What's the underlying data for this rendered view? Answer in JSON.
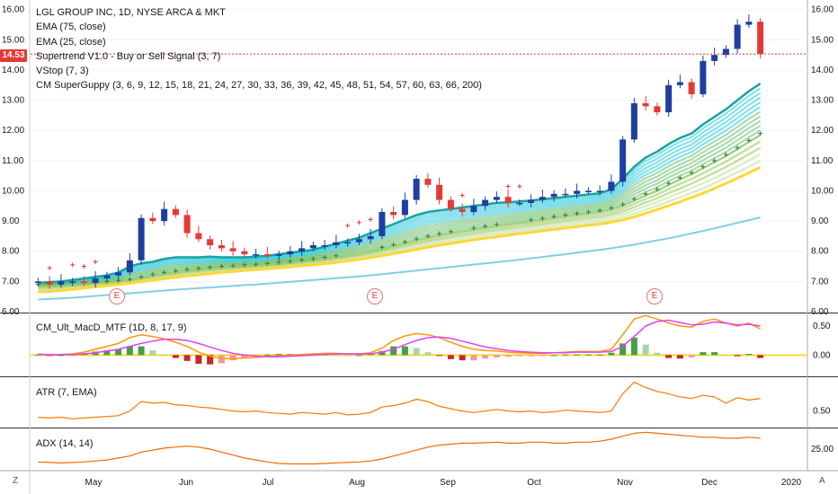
{
  "header": {
    "symbol_title": "LGL GROUP INC, 1D, NYSE ARCA & MKT",
    "indicators": [
      "EMA (75, close)",
      "EMA (25, close)",
      "Supertrend V1.0 - Buy or Sell Signal (3, 7)",
      "VStop (7, 3)",
      "CM SuperGuppy (3, 6, 9, 12, 15, 18, 21, 24, 27, 30, 33, 36, 39, 42, 45, 48, 51, 54, 57, 60, 63, 66, 200)"
    ]
  },
  "last_price": "14.53",
  "earnings_marker": "E",
  "corner_left": "Z",
  "corner_right": "A",
  "colors": {
    "up": "#26a69a",
    "up_bar": "#1e3fa0",
    "down": "#e53935",
    "ema_slow": "#7fd0e0",
    "supertrend_sell": "#e53935",
    "supertrend_buy": "#2e7d32",
    "guppy_fast": "#26c6da",
    "guppy_slow": "#66bb6a",
    "guppy_200": "#fdd835",
    "macd_line": "#e040fb",
    "signal_line": "#ff9800",
    "atr": "#f57c00",
    "adx": "#ef6c00"
  },
  "panes": {
    "macd": {
      "label": "CM_Ult_MacD_MTF (1D, 8, 17, 9)",
      "ticks": [
        "0.50",
        "0.00"
      ]
    },
    "atr": {
      "label": "ATR (7, EMA)",
      "ticks": [
        "0.50"
      ]
    },
    "adx": {
      "label": "ADX (14, 14)",
      "ticks": [
        "25.00"
      ]
    }
  },
  "chart_data": [
    {
      "type": "line",
      "title": "LGL GROUP INC, 1D, NYSE ARCA & MKT",
      "xlabel": "",
      "ylabel": "",
      "ylim": [
        6.0,
        16.2
      ],
      "x_tick_labels": [
        "May",
        "Jun",
        "Jul",
        "Aug",
        "Sep",
        "Oct",
        "Nov",
        "Dec",
        "2020"
      ],
      "y_tick_labels": [
        "6.00",
        "7.00",
        "8.00",
        "9.00",
        "10.00",
        "11.00",
        "12.00",
        "13.00",
        "14.00",
        "15.00",
        "16.00"
      ],
      "earnings_months": [
        "May",
        "Aug",
        "Nov"
      ],
      "series": [
        {
          "values": [
            7.0,
            6.9,
            7.0,
            7.0,
            6.95,
            7.1,
            7.2,
            7.3,
            7.7,
            9.1,
            9.0,
            9.4,
            9.2,
            8.6,
            8.4,
            8.2,
            8.1,
            8.0,
            7.9,
            7.9,
            7.85,
            7.9,
            8.0,
            8.1,
            8.2,
            8.2,
            8.3,
            8.3,
            8.4,
            8.5,
            9.3,
            9.2,
            9.7,
            10.4,
            10.2,
            9.7,
            9.4,
            9.3,
            9.5,
            9.7,
            9.8,
            9.6,
            9.6,
            9.7,
            9.8,
            9.9,
            9.9,
            10.0,
            10.0,
            10.0,
            10.3,
            11.7,
            12.9,
            12.8,
            12.6,
            13.5,
            13.6,
            13.2,
            14.3,
            14.5,
            14.7,
            15.5,
            15.6,
            14.53
          ]
        },
        {
          "values": [
            6.95,
            6.98,
            7.0,
            7.05,
            7.1,
            7.15,
            7.2,
            7.3,
            7.5,
            7.6,
            7.65,
            7.75,
            7.8,
            7.8,
            7.8,
            7.82,
            7.8,
            7.8,
            7.8,
            7.82,
            7.85,
            7.9,
            7.95,
            8.0,
            8.05,
            8.15,
            8.25,
            8.35,
            8.45,
            8.6,
            8.75,
            8.9,
            9.05,
            9.2,
            9.3,
            9.35,
            9.4,
            9.45,
            9.5,
            9.55,
            9.6,
            9.62,
            9.65,
            9.68,
            9.72,
            9.76,
            9.8,
            9.84,
            9.88,
            9.92,
            10.05,
            10.4,
            10.8,
            11.1,
            11.3,
            11.55,
            11.75,
            11.9,
            12.2,
            12.45,
            12.7,
            13.0,
            13.3,
            13.55
          ]
        },
        {
          "values": [
            6.85,
            6.85,
            6.86,
            6.88,
            6.9,
            6.92,
            6.95,
            6.98,
            7.02,
            7.1,
            7.18,
            7.25,
            7.3,
            7.35,
            7.38,
            7.42,
            7.45,
            7.47,
            7.5,
            7.52,
            7.55,
            7.58,
            7.62,
            7.66,
            7.7,
            7.75,
            7.8,
            7.86,
            7.92,
            8.0,
            8.08,
            8.17,
            8.26,
            8.36,
            8.45,
            8.53,
            8.6,
            8.66,
            8.72,
            8.78,
            8.84,
            8.89,
            8.94,
            8.99,
            9.04,
            9.1,
            9.15,
            9.2,
            9.25,
            9.3,
            9.38,
            9.5,
            9.68,
            9.85,
            10.0,
            10.2,
            10.38,
            10.55,
            10.75,
            10.95,
            11.15,
            11.38,
            11.62,
            11.85
          ]
        },
        {
          "values": [
            6.65,
            6.67,
            6.7,
            6.74,
            6.78,
            6.82,
            6.86,
            6.9,
            6.94,
            6.99,
            7.04,
            7.09,
            7.14,
            7.18,
            7.22,
            7.26,
            7.3,
            7.33,
            7.36,
            7.39,
            7.42,
            7.45,
            7.48,
            7.52,
            7.55,
            7.59,
            7.63,
            7.68,
            7.73,
            7.79,
            7.85,
            7.92,
            7.99,
            8.06,
            8.13,
            8.2,
            8.26,
            8.32,
            8.38,
            8.43,
            8.48,
            8.53,
            8.58,
            8.63,
            8.68,
            8.72,
            8.77,
            8.81,
            8.86,
            8.9,
            8.96,
            9.04,
            9.14,
            9.26,
            9.38,
            9.51,
            9.64,
            9.78,
            9.92,
            10.08,
            10.25,
            10.42,
            10.6,
            10.78
          ]
        },
        {
          "values": [
            6.4,
            6.42,
            6.44,
            6.46,
            6.49,
            6.52,
            6.55,
            6.58,
            6.61,
            6.64,
            6.67,
            6.7,
            6.73,
            6.75,
            6.78,
            6.8,
            6.83,
            6.85,
            6.88,
            6.9,
            6.93,
            6.96,
            6.99,
            7.02,
            7.05,
            7.08,
            7.11,
            7.14,
            7.17,
            7.2,
            7.24,
            7.28,
            7.32,
            7.36,
            7.4,
            7.44,
            7.48,
            7.52,
            7.56,
            7.6,
            7.64,
            7.68,
            7.72,
            7.77,
            7.81,
            7.86,
            7.9,
            7.95,
            8.0,
            8.05,
            8.1,
            8.16,
            8.22,
            8.29,
            8.36,
            8.43,
            8.51,
            8.59,
            8.67,
            8.76,
            8.85,
            8.94,
            9.03,
            9.12
          ]
        }
      ]
    },
    {
      "type": "bar",
      "title": "CM_Ult_MacD_MTF (1D, 8, 17, 9)",
      "xlabel": "",
      "ylabel": "",
      "ylim": [
        -0.35,
        0.7
      ],
      "y_tick_labels": [
        "0.50",
        "0.00"
      ],
      "series": [
        {
          "values": [
            0.02,
            0.0,
            0.01,
            0.02,
            0.05,
            0.1,
            0.15,
            0.2,
            0.3,
            0.35,
            0.32,
            0.28,
            0.22,
            0.15,
            0.05,
            -0.02,
            -0.06,
            -0.06,
            -0.05,
            -0.04,
            -0.02,
            -0.01,
            0.0,
            0.01,
            0.02,
            0.03,
            0.03,
            0.02,
            0.02,
            0.04,
            0.12,
            0.25,
            0.33,
            0.37,
            0.35,
            0.3,
            0.22,
            0.15,
            0.1,
            0.08,
            0.07,
            0.05,
            0.04,
            0.03,
            0.03,
            0.04,
            0.05,
            0.06,
            0.06,
            0.06,
            0.1,
            0.35,
            0.62,
            0.68,
            0.62,
            0.55,
            0.5,
            0.48,
            0.58,
            0.62,
            0.55,
            0.5,
            0.55,
            0.45
          ]
        },
        {
          "values": [
            0.01,
            0.01,
            0.01,
            0.01,
            0.02,
            0.04,
            0.07,
            0.1,
            0.15,
            0.2,
            0.24,
            0.27,
            0.27,
            0.25,
            0.2,
            0.14,
            0.08,
            0.03,
            0.0,
            -0.02,
            -0.03,
            -0.03,
            -0.02,
            -0.01,
            0.0,
            0.01,
            0.02,
            0.02,
            0.02,
            0.02,
            0.05,
            0.1,
            0.18,
            0.25,
            0.3,
            0.31,
            0.29,
            0.24,
            0.19,
            0.14,
            0.11,
            0.08,
            0.06,
            0.05,
            0.04,
            0.04,
            0.04,
            0.05,
            0.05,
            0.05,
            0.06,
            0.15,
            0.32,
            0.5,
            0.58,
            0.6,
            0.56,
            0.52,
            0.53,
            0.57,
            0.55,
            0.52,
            0.53,
            0.5
          ]
        },
        {
          "values": [
            0.01,
            -0.01,
            0.0,
            0.01,
            0.03,
            0.06,
            0.08,
            0.1,
            0.15,
            0.15,
            0.08,
            0.01,
            -0.05,
            -0.1,
            -0.15,
            -0.16,
            -0.14,
            -0.09,
            -0.05,
            -0.02,
            0.01,
            0.02,
            0.02,
            0.02,
            0.02,
            0.02,
            0.01,
            0.0,
            0.0,
            0.02,
            0.07,
            0.15,
            0.15,
            0.12,
            0.05,
            -0.01,
            -0.07,
            -0.09,
            -0.09,
            -0.06,
            -0.04,
            -0.03,
            -0.02,
            -0.02,
            -0.01,
            0.0,
            0.01,
            0.01,
            0.01,
            0.01,
            0.04,
            0.2,
            0.3,
            0.18,
            0.04,
            -0.05,
            -0.06,
            -0.04,
            0.05,
            0.05,
            0.0,
            -0.02,
            0.02,
            -0.05
          ]
        }
      ]
    },
    {
      "type": "line",
      "title": "ATR (7, EMA)",
      "xlabel": "",
      "ylabel": "",
      "ylim": [
        0.3,
        0.92
      ],
      "y_tick_labels": [
        "0.50"
      ],
      "series": [
        {
          "values": [
            0.42,
            0.41,
            0.42,
            0.4,
            0.41,
            0.42,
            0.43,
            0.44,
            0.5,
            0.62,
            0.6,
            0.61,
            0.58,
            0.57,
            0.55,
            0.54,
            0.52,
            0.5,
            0.49,
            0.5,
            0.48,
            0.47,
            0.46,
            0.48,
            0.47,
            0.46,
            0.48,
            0.45,
            0.46,
            0.48,
            0.55,
            0.57,
            0.6,
            0.65,
            0.62,
            0.56,
            0.53,
            0.5,
            0.48,
            0.5,
            0.52,
            0.5,
            0.49,
            0.5,
            0.48,
            0.49,
            0.51,
            0.5,
            0.49,
            0.48,
            0.5,
            0.72,
            0.87,
            0.8,
            0.75,
            0.72,
            0.68,
            0.66,
            0.7,
            0.68,
            0.6,
            0.67,
            0.64,
            0.66
          ]
        }
      ]
    },
    {
      "type": "line",
      "title": "ADX (14, 14)",
      "xlabel": "",
      "ylabel": "",
      "ylim": [
        5,
        45
      ],
      "y_tick_labels": [
        "25.00"
      ],
      "series": [
        {
          "values": [
            12,
            11.5,
            11,
            11.5,
            12,
            13,
            14,
            16,
            18,
            22,
            24,
            26,
            27,
            28,
            27,
            25,
            22,
            19,
            16,
            14,
            12,
            10.5,
            10,
            10,
            10,
            10.5,
            11,
            11.5,
            12,
            13,
            15,
            18,
            21,
            24,
            27,
            29,
            30,
            31,
            31,
            31.5,
            32,
            31,
            31,
            32,
            32,
            31,
            31,
            32,
            32,
            33,
            35,
            38,
            41,
            42,
            41,
            40,
            39,
            38,
            37,
            37,
            36,
            36,
            37,
            36
          ]
        }
      ]
    }
  ]
}
